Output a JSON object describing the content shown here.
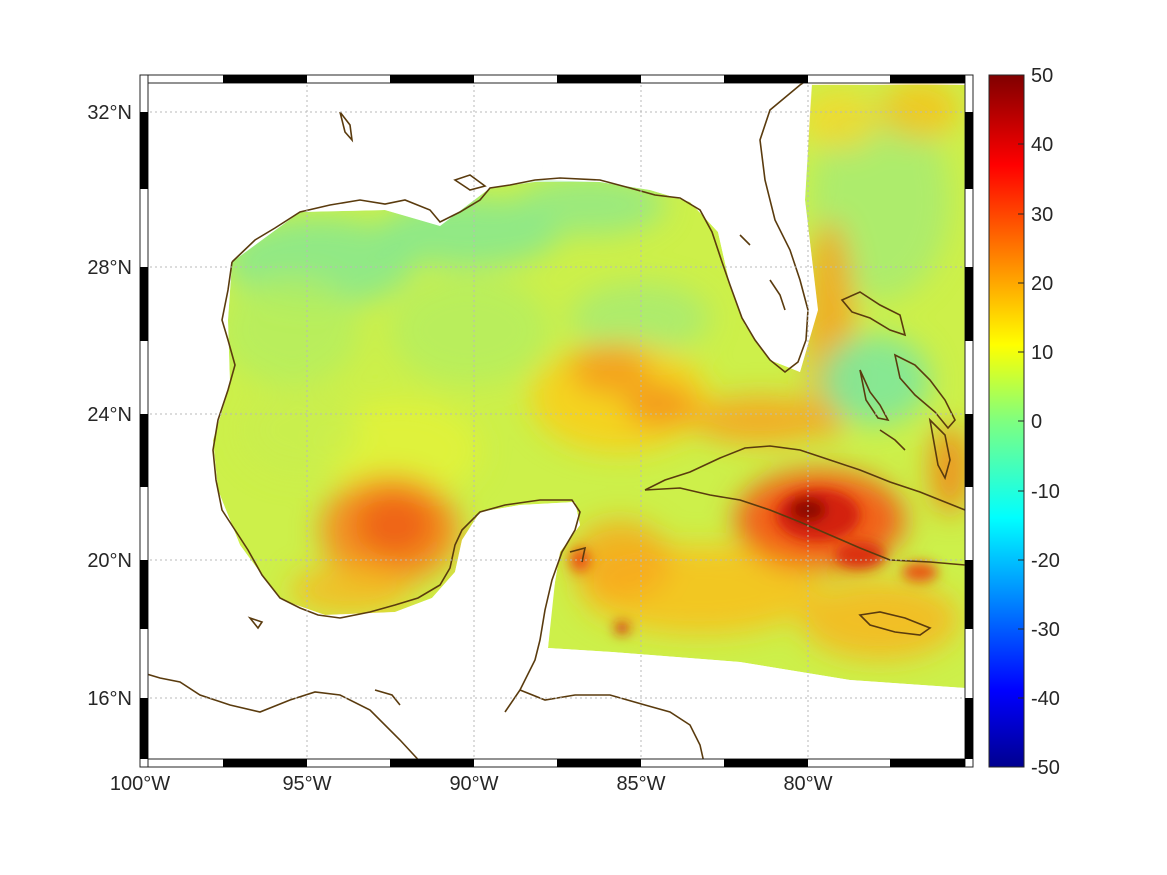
{
  "map": {
    "lat_labels": [
      "32°N",
      "28°N",
      "24°N",
      "20°N",
      "16°N"
    ],
    "lon_labels": [
      "100°W",
      "95°W",
      "90°W",
      "85°W",
      "80°W"
    ],
    "lat_values": [
      32,
      28,
      24,
      20,
      16
    ],
    "lon_values": [
      -100,
      -95,
      -90,
      -85,
      -80
    ],
    "lon_range": [
      -100,
      -75
    ],
    "lat_range": [
      14.3,
      33
    ],
    "grid": true,
    "coastline_color": "#5a3b0e",
    "field_colormap": "jet",
    "field_highs": [
      {
        "name": "south-of-cuba",
        "lon": -80.2,
        "lat": 21.3,
        "value": 48
      },
      {
        "name": "bay-of-campeche",
        "lon": -92.8,
        "lat": 20.6,
        "value": 32
      },
      {
        "name": "central-gulf",
        "lon": -85.5,
        "lat": 25.0,
        "value": 26
      },
      {
        "name": "east-gulf",
        "lon": -84.2,
        "lat": 24.2,
        "value": 28
      },
      {
        "name": "east-edge",
        "lon": -75.3,
        "lat": 22.8,
        "value": 30
      }
    ],
    "field_lows": [
      {
        "name": "nw-gulf",
        "lon": -96.0,
        "lat": 28.0,
        "value": 4
      },
      {
        "name": "n-gulf",
        "lon": -88.0,
        "lat": 28.6,
        "value": 4
      },
      {
        "name": "bahamas",
        "lon": -78.0,
        "lat": 24.8,
        "value": 3
      }
    ]
  },
  "colorbar": {
    "labels": [
      "50",
      "40",
      "30",
      "20",
      "10",
      "0",
      "-10",
      "-20",
      "-30",
      "-40",
      "-50"
    ],
    "min": -50,
    "max": 50,
    "colormap": "jet"
  }
}
